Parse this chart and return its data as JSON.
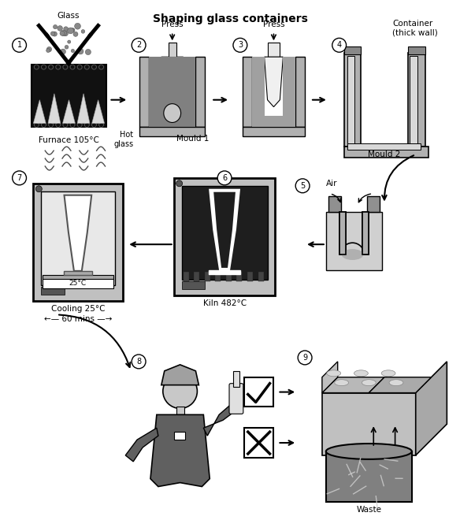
{
  "title": "Shaping glass containers",
  "title_fontsize": 10,
  "title_fontweight": "bold",
  "bg": "#ffffff",
  "gray_light": "#c8c8c8",
  "gray_mid": "#a0a0a0",
  "gray_dark": "#606060",
  "black": "#111111",
  "captions": {
    "furnace": "Furnace 105°C",
    "hot_glass": "Hot\nglass",
    "mould1": "Mould 1",
    "mould2": "Mould 2",
    "container": "Container\n(thick wall)",
    "glass_label": "Glass",
    "press2": "Press",
    "press3": "Press",
    "air": "Air",
    "kiln": "Kiln 482°C",
    "cooling": "Cooling 25°C\n←— 60 mins —→",
    "waste": "Waste",
    "temp7": "25°C"
  }
}
